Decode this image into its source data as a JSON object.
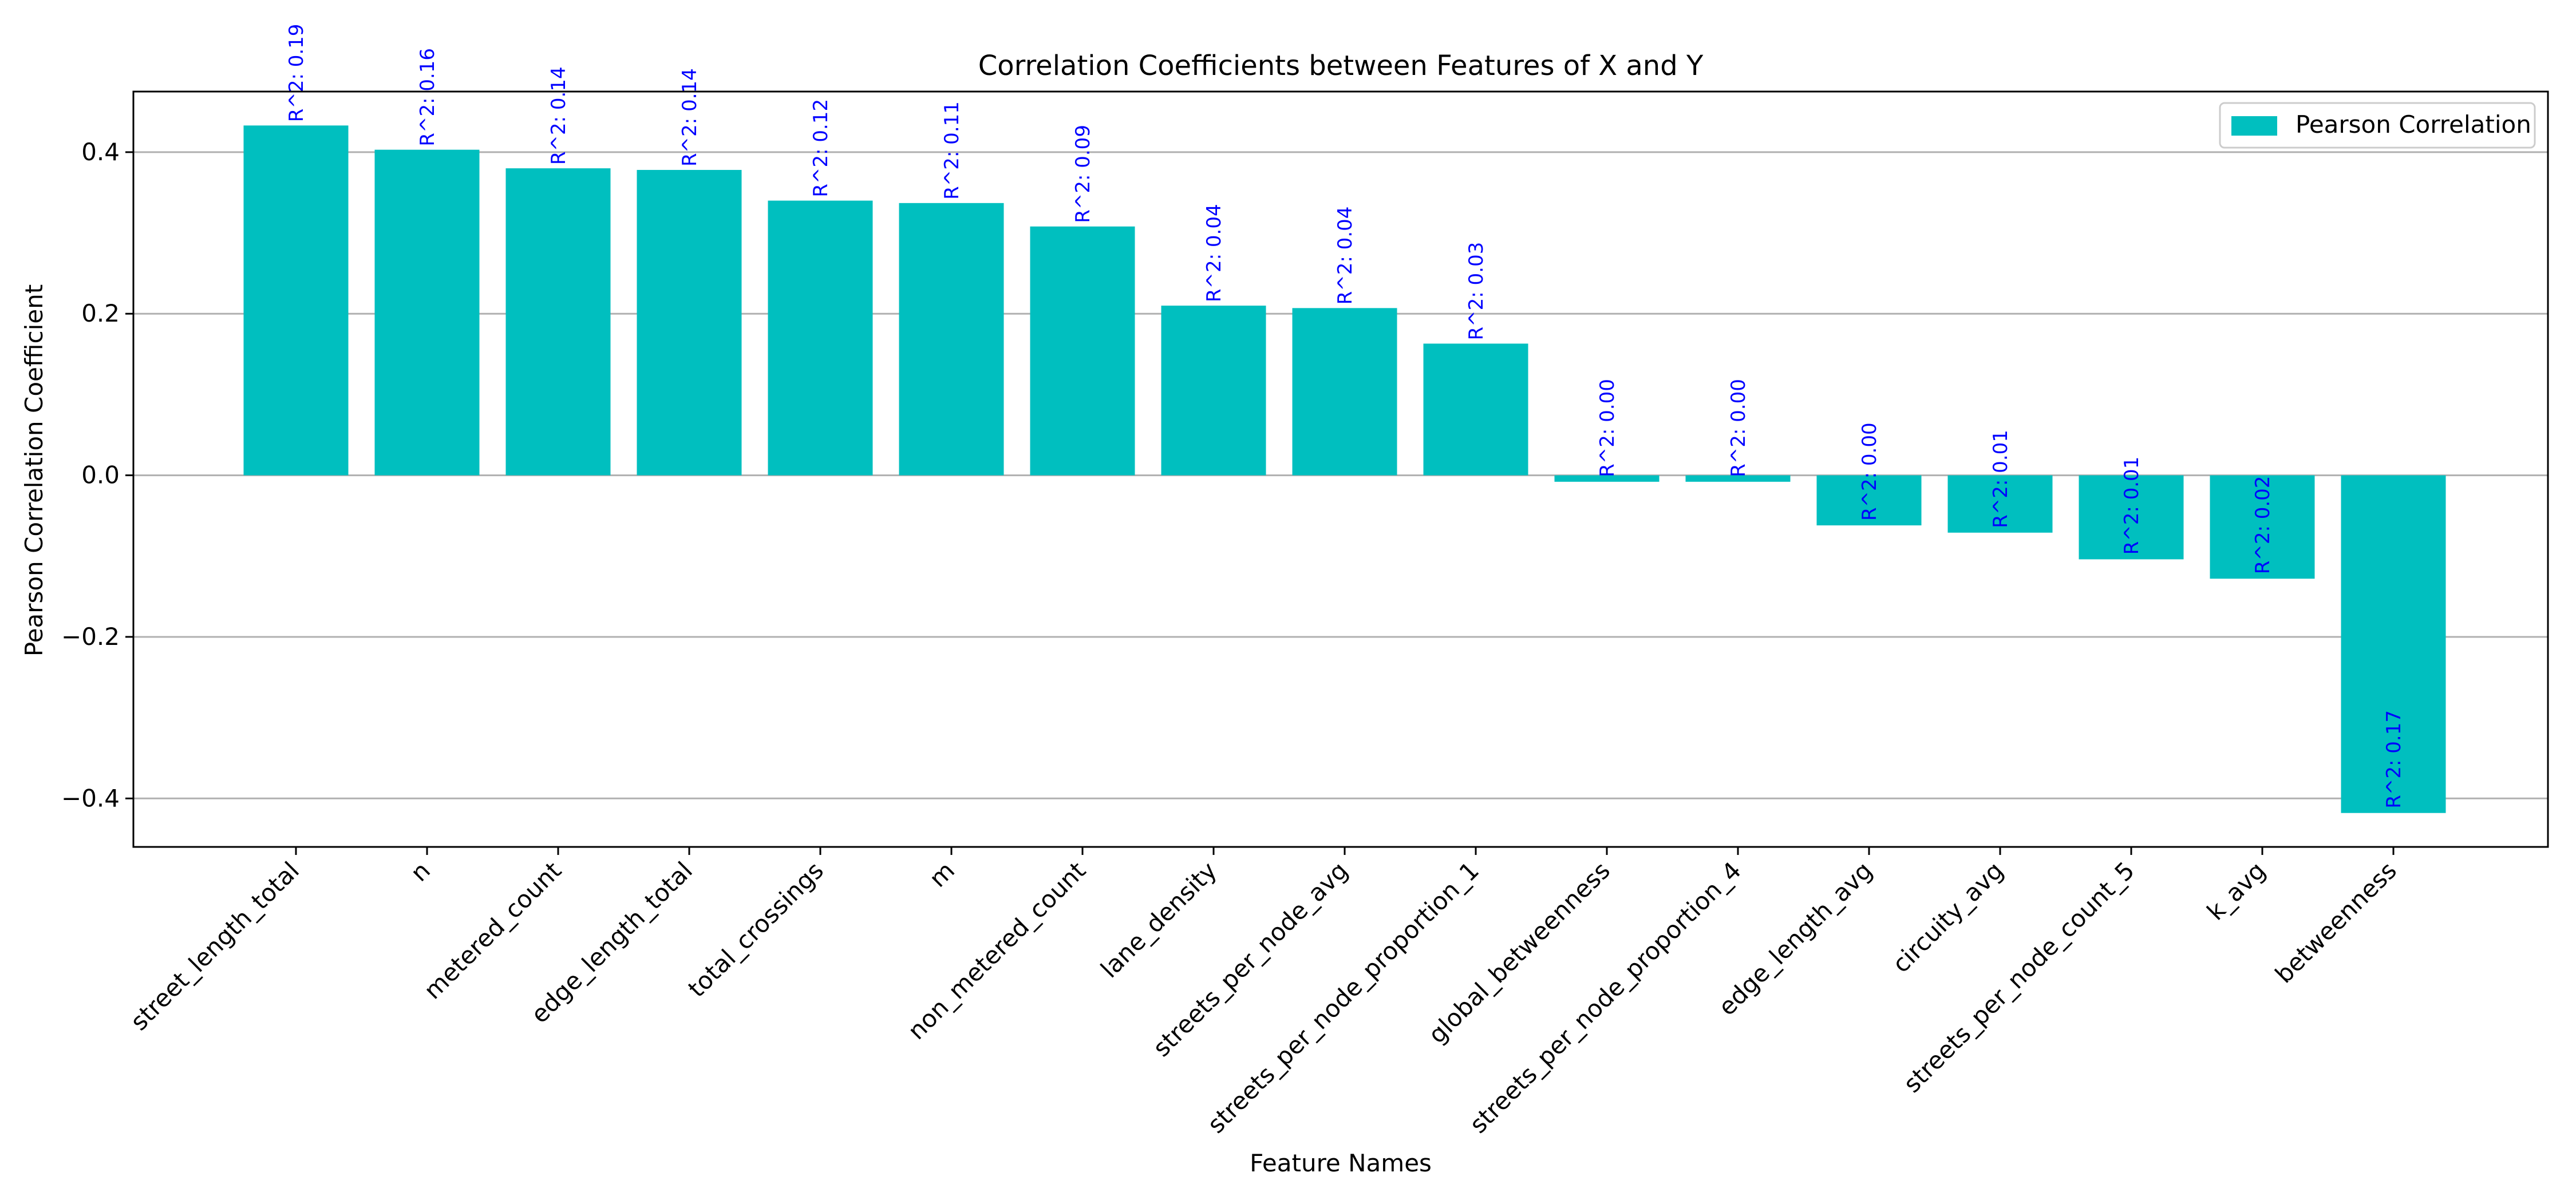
{
  "chart_data": {
    "type": "bar",
    "title": "Correlation Coefficients between Features of X and Y",
    "xlabel": "Feature Names",
    "ylabel": "Pearson Correlation Coefficient",
    "categories": [
      "street_length_total",
      "n",
      "metered_count",
      "edge_length_total",
      "total_crossings",
      "m",
      "non_metered_count",
      "lane_density",
      "streets_per_node_avg",
      "streets_per_node_proportion_1",
      "global_betweenness",
      "streets_per_node_proportion_4",
      "edge_length_avg",
      "circuity_avg",
      "streets_per_node_count_5",
      "k_avg",
      "betweenness"
    ],
    "series": [
      {
        "name": "Pearson Correlation",
        "color": "#00bfbf",
        "values": [
          0.433,
          0.403,
          0.38,
          0.378,
          0.34,
          0.337,
          0.308,
          0.21,
          0.207,
          0.163,
          -0.008,
          -0.008,
          -0.062,
          -0.071,
          -0.104,
          -0.128,
          -0.418
        ]
      }
    ],
    "annotations": [
      "R^2: 0.19",
      "R^2: 0.16",
      "R^2: 0.14",
      "R^2: 0.14",
      "R^2: 0.12",
      "R^2: 0.11",
      "R^2: 0.09",
      "R^2: 0.04",
      "R^2: 0.04",
      "R^2: 0.03",
      "R^2: 0.00",
      "R^2: 0.00",
      "R^2: 0.00",
      "R^2: 0.01",
      "R^2: 0.01",
      "R^2: 0.02",
      "R^2: 0.17"
    ],
    "annotation_color": "#0000ff",
    "ylim": [
      -0.46,
      0.475
    ],
    "yticks": [
      -0.4,
      -0.2,
      0.0,
      0.2,
      0.4
    ],
    "ytick_labels": [
      "−0.4",
      "−0.2",
      "0.0",
      "0.2",
      "0.4"
    ],
    "grid": "y",
    "legend": {
      "placement": "top-right",
      "entries": [
        "Pearson Correlation"
      ]
    }
  }
}
